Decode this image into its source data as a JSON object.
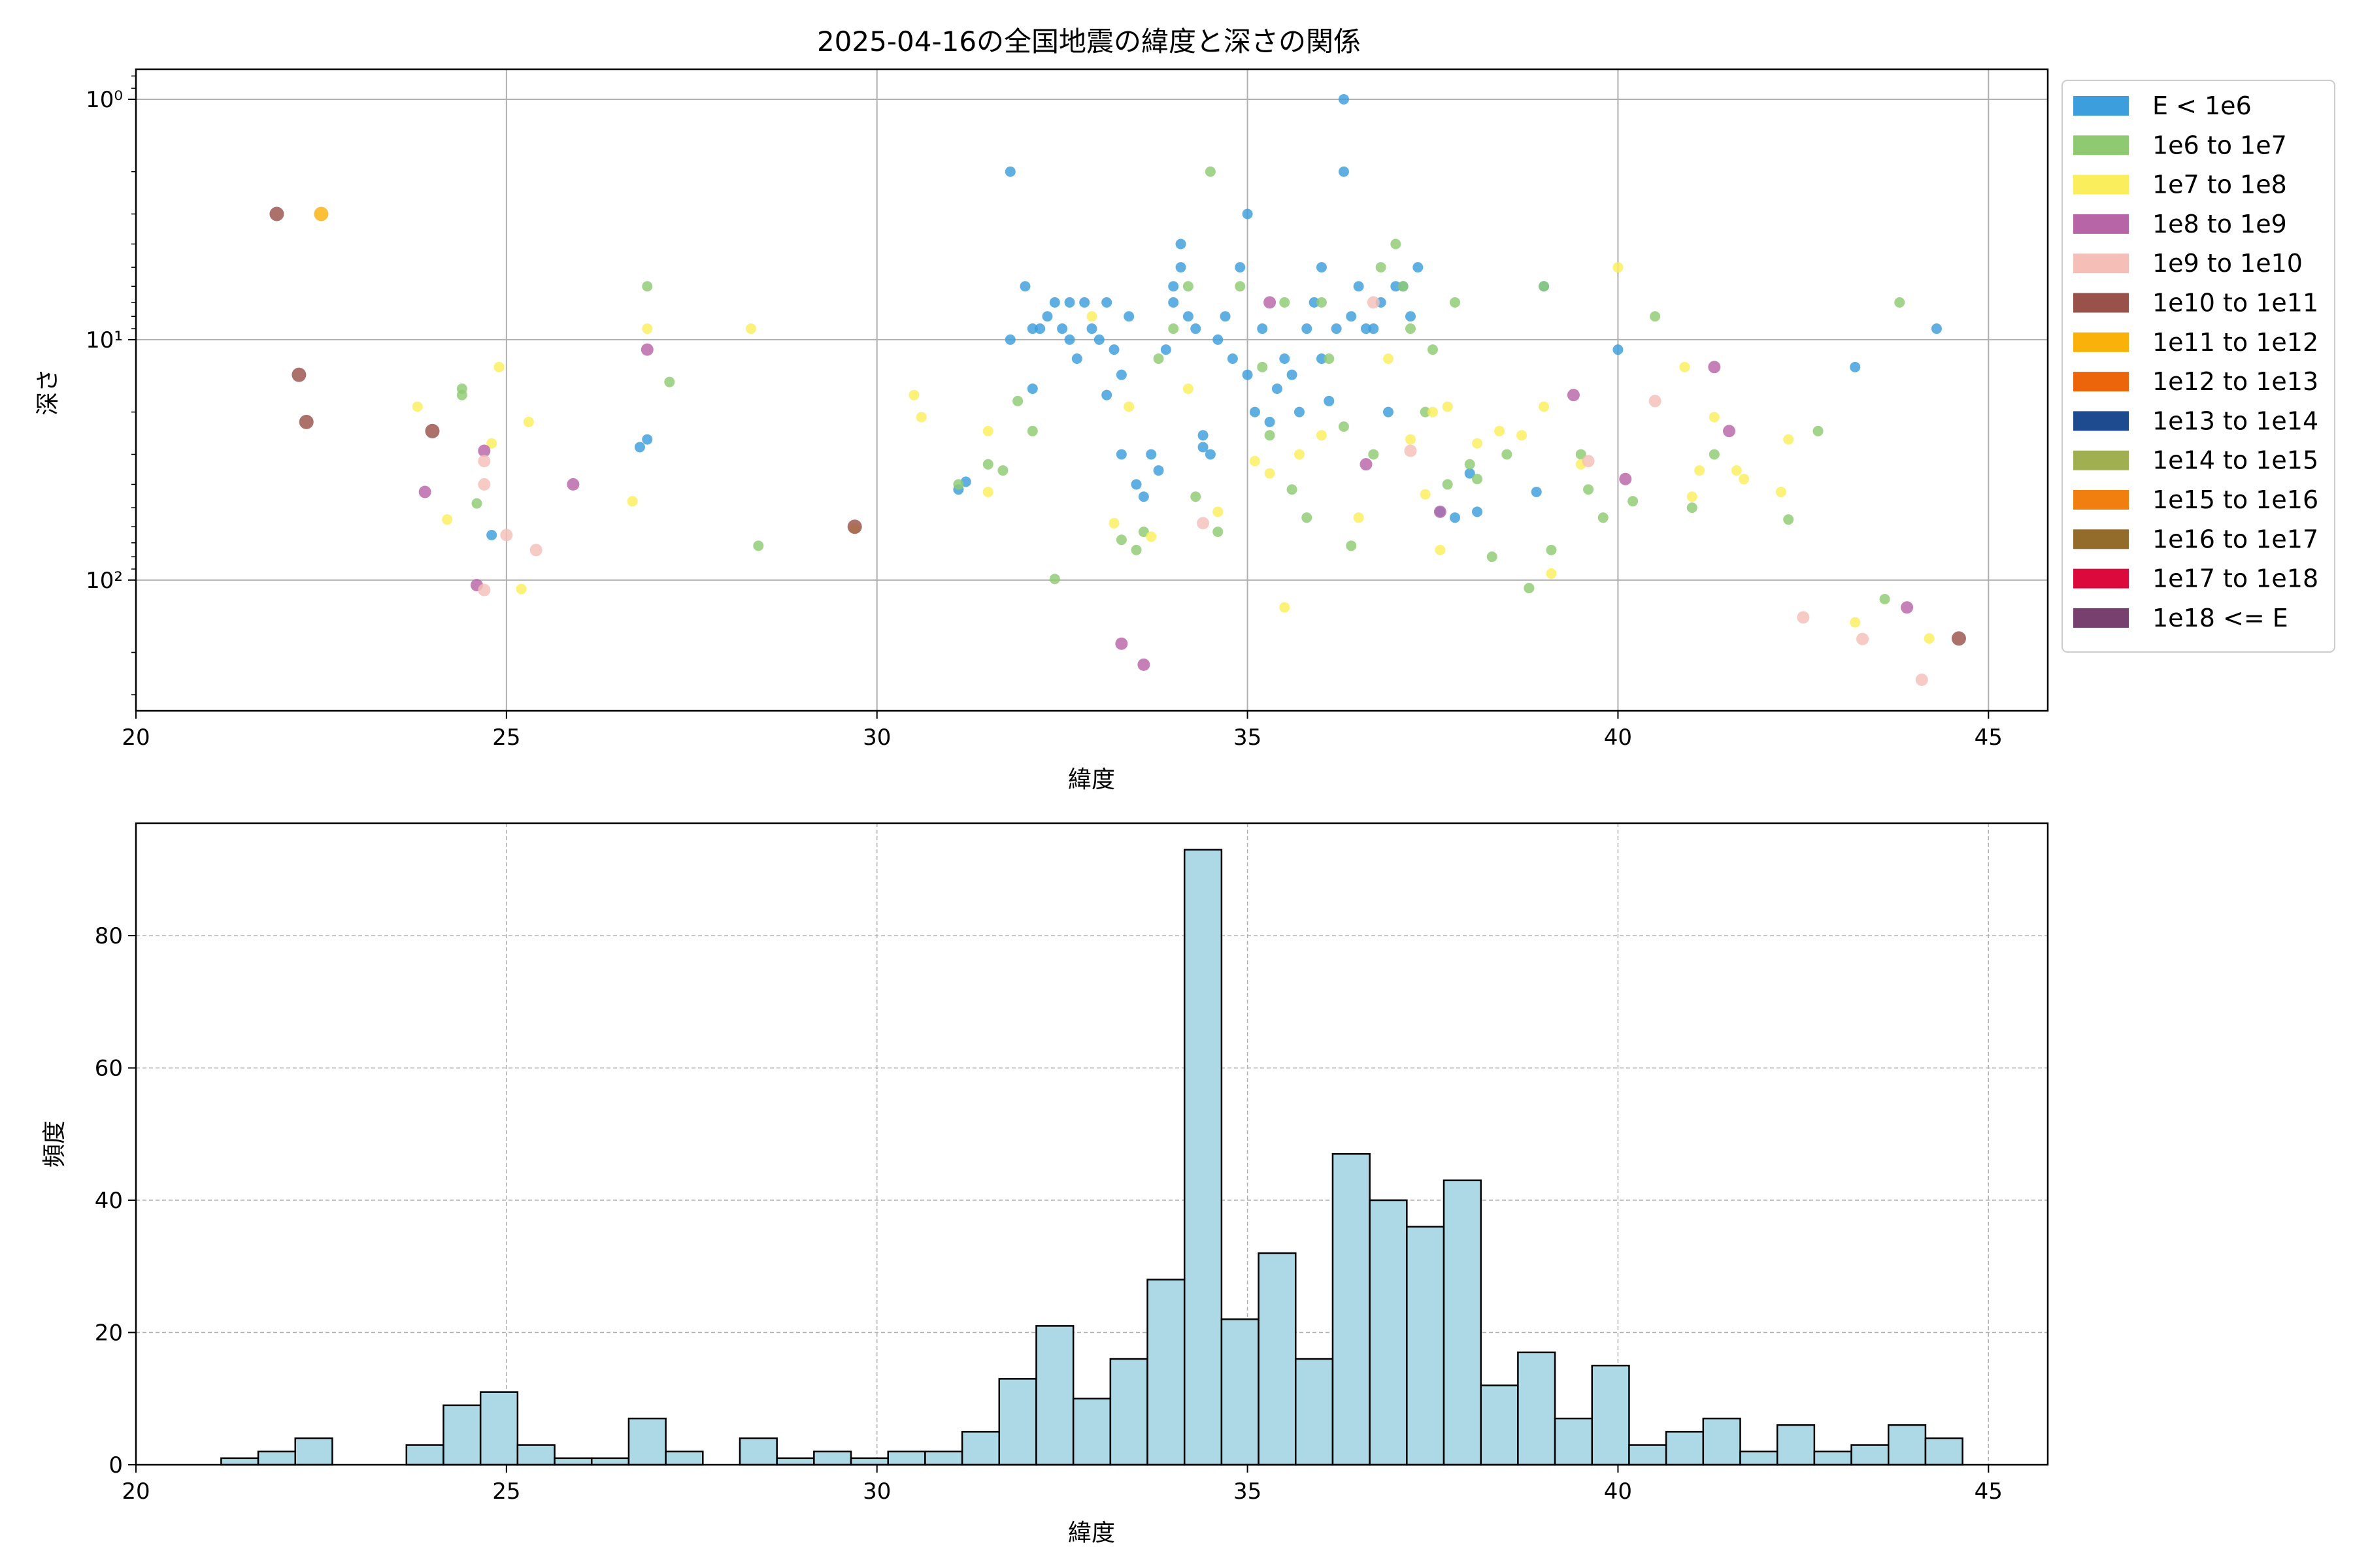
{
  "chart_data": [
    {
      "type": "scatter",
      "title": "2025-04-16の全国地震の緯度と深さの関係",
      "xlabel": "緯度",
      "ylabel": "深さ",
      "xlim": [
        20,
        45.8
      ],
      "ylim": [
        350,
        0.75
      ],
      "yscale": "log",
      "y_inverted": true,
      "grid": true,
      "xticks": [
        20,
        25,
        30,
        35,
        40,
        45
      ],
      "yticks": [
        {
          "value": 1,
          "label": "10⁰"
        },
        {
          "value": 10,
          "label": "10¹"
        },
        {
          "value": 100,
          "label": "10²"
        }
      ],
      "legend": {
        "placement": "outside-right",
        "entries": [
          {
            "label": "E < 1e6",
            "color": "#3c9edc"
          },
          {
            "label": "1e6 to 1e7",
            "color": "#8fca72"
          },
          {
            "label": "1e7 to 1e8",
            "color": "#fbee5c"
          },
          {
            "label": "1e8 to 1e9",
            "color": "#b865a7"
          },
          {
            "label": "1e9 to 1e10",
            "color": "#f5bfb8"
          },
          {
            "label": "1e10 to 1e11",
            "color": "#995249"
          },
          {
            "label": "1e11 to 1e12",
            "color": "#fab20a"
          },
          {
            "label": "1e12 to 1e13",
            "color": "#ed650a"
          },
          {
            "label": "1e13 to 1e14",
            "color": "#1e4a8f"
          },
          {
            "label": "1e14 to 1e15",
            "color": "#a0b050"
          },
          {
            "label": "1e15 to 1e16",
            "color": "#f07f10"
          },
          {
            "label": "1e16 to 1e17",
            "color": "#936c2c"
          },
          {
            "label": "1e17 to 1e18",
            "color": "#dc0a3c"
          },
          {
            "label": "1e18 <= E",
            "color": "#77406e"
          }
        ]
      },
      "series": [
        {
          "category": 0,
          "points": [
            [
              31.8,
              2
            ],
            [
              31.8,
              10
            ],
            [
              32.0,
              6
            ],
            [
              32.1,
              9
            ],
            [
              32.2,
              9
            ],
            [
              32.3,
              8
            ],
            [
              32.4,
              7
            ],
            [
              32.5,
              9
            ],
            [
              32.6,
              7
            ],
            [
              32.6,
              10
            ],
            [
              32.7,
              12
            ],
            [
              32.8,
              7
            ],
            [
              32.9,
              9
            ],
            [
              33.0,
              10
            ],
            [
              33.1,
              7
            ],
            [
              33.2,
              11
            ],
            [
              33.3,
              14
            ],
            [
              33.4,
              8
            ],
            [
              33.5,
              40
            ],
            [
              33.6,
              45
            ],
            [
              33.7,
              30
            ],
            [
              33.8,
              35
            ],
            [
              33.9,
              11
            ],
            [
              34.0,
              6
            ],
            [
              34.0,
              7
            ],
            [
              34.1,
              5
            ],
            [
              34.1,
              4
            ],
            [
              34.2,
              8
            ],
            [
              34.3,
              9
            ],
            [
              34.4,
              25
            ],
            [
              34.4,
              28
            ],
            [
              34.5,
              30
            ],
            [
              34.6,
              10
            ],
            [
              34.7,
              8
            ],
            [
              34.8,
              12
            ],
            [
              34.9,
              5
            ],
            [
              35.0,
              3
            ],
            [
              35.0,
              14
            ],
            [
              35.1,
              20
            ],
            [
              35.2,
              9
            ],
            [
              35.3,
              22
            ],
            [
              35.4,
              16
            ],
            [
              35.5,
              12
            ],
            [
              35.6,
              14
            ],
            [
              35.7,
              20
            ],
            [
              35.8,
              9
            ],
            [
              35.9,
              7
            ],
            [
              36.0,
              5
            ],
            [
              36.0,
              12
            ],
            [
              36.1,
              18
            ],
            [
              36.2,
              9
            ],
            [
              36.3,
              1
            ],
            [
              36.3,
              2
            ],
            [
              36.4,
              8
            ],
            [
              36.5,
              6
            ],
            [
              36.6,
              9
            ],
            [
              36.7,
              9
            ],
            [
              36.8,
              7
            ],
            [
              36.9,
              20
            ],
            [
              37.0,
              6
            ],
            [
              37.1,
              6
            ],
            [
              37.2,
              8
            ],
            [
              37.3,
              5
            ],
            [
              37.6,
              52
            ],
            [
              37.8,
              55
            ],
            [
              38.0,
              36
            ],
            [
              38.1,
              52
            ],
            [
              38.9,
              43
            ],
            [
              39.0,
              6
            ],
            [
              40.0,
              11
            ],
            [
              43.2,
              13
            ],
            [
              44.3,
              9
            ],
            [
              24.8,
              65
            ],
            [
              26.8,
              28
            ],
            [
              26.9,
              26
            ],
            [
              31.1,
              42
            ],
            [
              31.2,
              39
            ],
            [
              32.1,
              16
            ],
            [
              33.1,
              17
            ],
            [
              33.3,
              30
            ]
          ]
        },
        {
          "category": 1,
          "points": [
            [
              24.4,
              16
            ],
            [
              24.4,
              17
            ],
            [
              24.6,
              48
            ],
            [
              26.9,
              6
            ],
            [
              27.2,
              15
            ],
            [
              28.4,
              72
            ],
            [
              31.1,
              40
            ],
            [
              31.5,
              33
            ],
            [
              31.7,
              35
            ],
            [
              31.9,
              18
            ],
            [
              32.1,
              24
            ],
            [
              32.4,
              99
            ],
            [
              33.3,
              68
            ],
            [
              33.5,
              75
            ],
            [
              33.6,
              63
            ],
            [
              33.8,
              12
            ],
            [
              34.0,
              9
            ],
            [
              34.2,
              6
            ],
            [
              34.3,
              45
            ],
            [
              34.5,
              2
            ],
            [
              34.6,
              63
            ],
            [
              34.9,
              6
            ],
            [
              35.2,
              13
            ],
            [
              35.3,
              25
            ],
            [
              35.5,
              7
            ],
            [
              35.6,
              42
            ],
            [
              35.8,
              55
            ],
            [
              36.0,
              7
            ],
            [
              36.1,
              12
            ],
            [
              36.3,
              23
            ],
            [
              36.4,
              72
            ],
            [
              36.7,
              30
            ],
            [
              36.8,
              5
            ],
            [
              37.0,
              4
            ],
            [
              37.1,
              6
            ],
            [
              37.2,
              9
            ],
            [
              37.4,
              20
            ],
            [
              37.5,
              11
            ],
            [
              37.7,
              40
            ],
            [
              37.8,
              7
            ],
            [
              38.0,
              33
            ],
            [
              38.1,
              38
            ],
            [
              38.3,
              80
            ],
            [
              38.5,
              30
            ],
            [
              38.8,
              108
            ],
            [
              39.0,
              6
            ],
            [
              39.1,
              75
            ],
            [
              39.5,
              30
            ],
            [
              39.6,
              42
            ],
            [
              39.8,
              55
            ],
            [
              40.2,
              47
            ],
            [
              40.5,
              8
            ],
            [
              41.0,
              50
            ],
            [
              41.3,
              30
            ],
            [
              42.3,
              56
            ],
            [
              42.7,
              24
            ],
            [
              43.6,
              120
            ],
            [
              43.8,
              7
            ]
          ]
        },
        {
          "category": 2,
          "points": [
            [
              23.8,
              19
            ],
            [
              24.2,
              56
            ],
            [
              24.8,
              27
            ],
            [
              24.9,
              13
            ],
            [
              25.2,
              109
            ],
            [
              25.3,
              22
            ],
            [
              26.7,
              47
            ],
            [
              26.9,
              9
            ],
            [
              28.3,
              9
            ],
            [
              29.7,
              61
            ],
            [
              30.5,
              17
            ],
            [
              30.6,
              21
            ],
            [
              31.5,
              24
            ],
            [
              31.5,
              43
            ],
            [
              32.9,
              8
            ],
            [
              33.2,
              58
            ],
            [
              33.4,
              19
            ],
            [
              33.7,
              66
            ],
            [
              34.2,
              16
            ],
            [
              34.6,
              52
            ],
            [
              35.1,
              32
            ],
            [
              35.3,
              36
            ],
            [
              35.5,
              130
            ],
            [
              35.7,
              30
            ],
            [
              36.0,
              25
            ],
            [
              36.5,
              55
            ],
            [
              36.9,
              12
            ],
            [
              37.2,
              26
            ],
            [
              37.4,
              44
            ],
            [
              37.5,
              20
            ],
            [
              37.6,
              75
            ],
            [
              37.7,
              19
            ],
            [
              38.1,
              27
            ],
            [
              38.4,
              24
            ],
            [
              38.7,
              25
            ],
            [
              39.0,
              19
            ],
            [
              39.1,
              94
            ],
            [
              39.5,
              33
            ],
            [
              40.0,
              5
            ],
            [
              40.9,
              13
            ],
            [
              41.0,
              45
            ],
            [
              41.1,
              35
            ],
            [
              41.3,
              21
            ],
            [
              41.6,
              35
            ],
            [
              41.7,
              38
            ],
            [
              42.2,
              43
            ],
            [
              42.3,
              26
            ],
            [
              43.2,
              150
            ],
            [
              44.2,
              175
            ]
          ]
        },
        {
          "category": 3,
          "points": [
            [
              23.9,
              43
            ],
            [
              24.6,
              105
            ],
            [
              24.7,
              29
            ],
            [
              25.9,
              40
            ],
            [
              26.9,
              11
            ],
            [
              33.3,
              184
            ],
            [
              33.6,
              225
            ],
            [
              35.3,
              7
            ],
            [
              36.6,
              33
            ],
            [
              37.6,
              52
            ],
            [
              39.4,
              17
            ],
            [
              40.1,
              38
            ],
            [
              41.3,
              13
            ],
            [
              41.5,
              24
            ],
            [
              43.9,
              130
            ]
          ]
        },
        {
          "category": 4,
          "points": [
            [
              24.7,
              110
            ],
            [
              24.7,
              32
            ],
            [
              24.7,
              40
            ],
            [
              25.0,
              65
            ],
            [
              25.4,
              75
            ],
            [
              34.4,
              58
            ],
            [
              36.7,
              7
            ],
            [
              37.2,
              29
            ],
            [
              39.6,
              32
            ],
            [
              40.5,
              18
            ],
            [
              42.5,
              143
            ],
            [
              43.3,
              176
            ],
            [
              44.1,
              260
            ]
          ]
        },
        {
          "category": 5,
          "points": [
            [
              21.9,
              3
            ],
            [
              22.2,
              14
            ],
            [
              22.3,
              22
            ],
            [
              24.0,
              24
            ],
            [
              29.7,
              60
            ],
            [
              44.6,
              175
            ]
          ]
        },
        {
          "category": 6,
          "points": [
            [
              22.5,
              3
            ]
          ]
        }
      ]
    },
    {
      "type": "bar",
      "title": "",
      "xlabel": "緯度",
      "ylabel": "頻度",
      "xlim": [
        20,
        45.8
      ],
      "ylim": [
        0,
        97
      ],
      "grid": true,
      "xticks": [
        20,
        25,
        30,
        35,
        40,
        45
      ],
      "yticks": [
        0,
        20,
        40,
        60,
        80
      ],
      "bar_color": "#add8e6",
      "bin_start": 21.15,
      "bin_width": 0.5,
      "values": [
        1,
        2,
        4,
        0,
        0,
        3,
        9,
        11,
        3,
        1,
        1,
        7,
        2,
        0,
        4,
        1,
        2,
        1,
        2,
        2,
        5,
        13,
        21,
        10,
        16,
        28,
        93,
        22,
        32,
        16,
        47,
        40,
        36,
        43,
        12,
        17,
        7,
        15,
        3,
        5,
        7,
        2,
        6,
        2,
        3,
        6,
        4
      ]
    }
  ]
}
